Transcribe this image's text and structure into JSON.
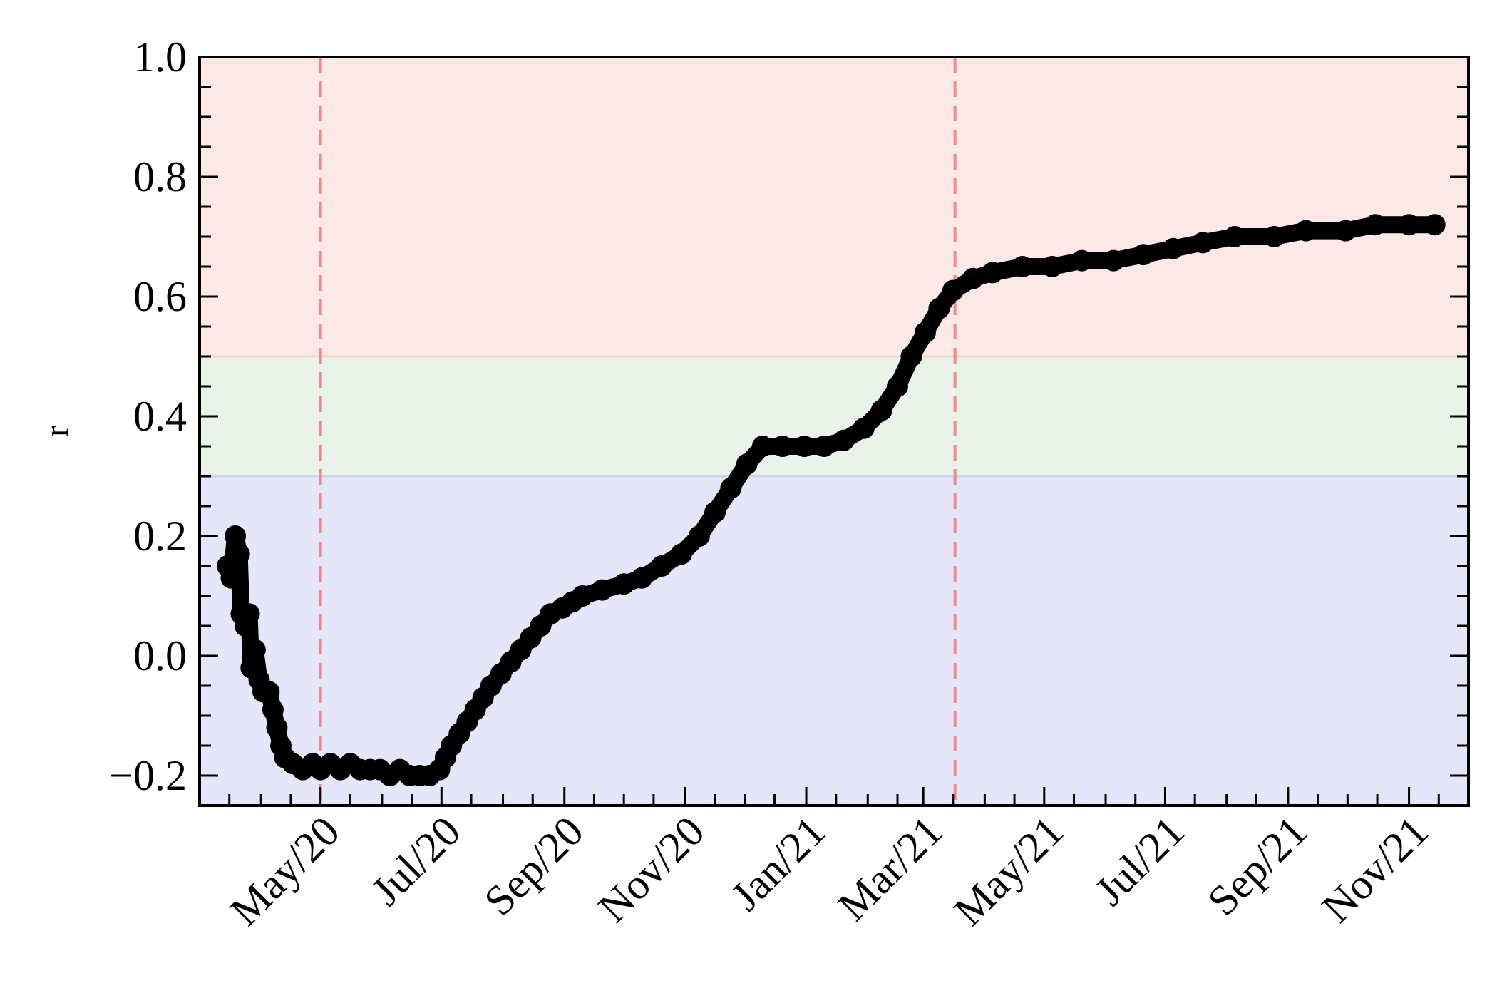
{
  "chart_data": {
    "type": "scatter",
    "title": "",
    "xlabel": "",
    "ylabel": "r",
    "x_type": "date",
    "xlim": [
      "2020-03-01",
      "2021-12-01"
    ],
    "ylim": [
      -0.25,
      1.0
    ],
    "y_ticks": [
      -0.2,
      0.0,
      0.2,
      0.4,
      0.6,
      0.8,
      1.0
    ],
    "y_tick_labels": [
      "−0.2",
      "0.0",
      "0.2",
      "0.4",
      "0.6",
      "0.8",
      "1.0"
    ],
    "x_ticks": [
      "2020-05-01",
      "2020-07-01",
      "2020-09-01",
      "2020-11-01",
      "2021-01-01",
      "2021-03-01",
      "2021-05-01",
      "2021-07-01",
      "2021-09-01",
      "2021-11-01"
    ],
    "x_tick_labels": [
      "May/20",
      "Jul/20",
      "Sep/20",
      "Nov/20",
      "Jan/21",
      "Mar/21",
      "May/21",
      "Jul/21",
      "Sep/21",
      "Nov/21"
    ],
    "grid": false,
    "bands": [
      {
        "y": [
          -0.25,
          0.3
        ],
        "color": "#e6e6fa"
      },
      {
        "y": [
          0.3,
          0.5
        ],
        "color": "#e9f3e9"
      },
      {
        "y": [
          0.5,
          1.0
        ],
        "color": "#fde8e8"
      }
    ],
    "vlines": [
      {
        "x": "2020-05-01",
        "color": "#f08080",
        "style": "dashed"
      },
      {
        "x": "2021-03-17",
        "color": "#f08080",
        "style": "dashed"
      }
    ],
    "series": [
      {
        "color": "#000000",
        "points": [
          [
            "2020-03-15",
            0.15
          ],
          [
            "2020-03-17",
            0.13
          ],
          [
            "2020-03-19",
            0.2
          ],
          [
            "2020-03-21",
            0.17
          ],
          [
            "2020-03-22",
            0.07
          ],
          [
            "2020-03-24",
            0.05
          ],
          [
            "2020-03-26",
            0.07
          ],
          [
            "2020-03-27",
            -0.02
          ],
          [
            "2020-03-29",
            0.01
          ],
          [
            "2020-03-31",
            -0.04
          ],
          [
            "2020-04-02",
            -0.06
          ],
          [
            "2020-04-05",
            -0.06
          ],
          [
            "2020-04-07",
            -0.09
          ],
          [
            "2020-04-09",
            -0.12
          ],
          [
            "2020-04-11",
            -0.15
          ],
          [
            "2020-04-13",
            -0.17
          ],
          [
            "2020-04-17",
            -0.18
          ],
          [
            "2020-04-22",
            -0.19
          ],
          [
            "2020-04-27",
            -0.18
          ],
          [
            "2020-05-01",
            -0.19
          ],
          [
            "2020-05-06",
            -0.18
          ],
          [
            "2020-05-11",
            -0.19
          ],
          [
            "2020-05-16",
            -0.18
          ],
          [
            "2020-05-21",
            -0.19
          ],
          [
            "2020-05-26",
            -0.19
          ],
          [
            "2020-05-31",
            -0.19
          ],
          [
            "2020-06-05",
            -0.2
          ],
          [
            "2020-06-10",
            -0.19
          ],
          [
            "2020-06-15",
            -0.2
          ],
          [
            "2020-06-20",
            -0.2
          ],
          [
            "2020-06-25",
            -0.2
          ],
          [
            "2020-06-30",
            -0.19
          ],
          [
            "2020-07-03",
            -0.17
          ],
          [
            "2020-07-06",
            -0.15
          ],
          [
            "2020-07-10",
            -0.13
          ],
          [
            "2020-07-14",
            -0.11
          ],
          [
            "2020-07-18",
            -0.09
          ],
          [
            "2020-07-22",
            -0.07
          ],
          [
            "2020-07-26",
            -0.05
          ],
          [
            "2020-07-31",
            -0.03
          ],
          [
            "2020-08-05",
            -0.01
          ],
          [
            "2020-08-10",
            0.01
          ],
          [
            "2020-08-15",
            0.03
          ],
          [
            "2020-08-20",
            0.05
          ],
          [
            "2020-08-25",
            0.07
          ],
          [
            "2020-08-31",
            0.08
          ],
          [
            "2020-09-05",
            0.09
          ],
          [
            "2020-09-10",
            0.1
          ],
          [
            "2020-09-20",
            0.11
          ],
          [
            "2020-10-01",
            0.12
          ],
          [
            "2020-10-10",
            0.13
          ],
          [
            "2020-10-20",
            0.15
          ],
          [
            "2020-10-30",
            0.17
          ],
          [
            "2020-11-08",
            0.2
          ],
          [
            "2020-11-16",
            0.24
          ],
          [
            "2020-11-24",
            0.28
          ],
          [
            "2020-12-02",
            0.32
          ],
          [
            "2020-12-10",
            0.35
          ],
          [
            "2020-12-20",
            0.35
          ],
          [
            "2020-12-31",
            0.35
          ],
          [
            "2021-01-10",
            0.35
          ],
          [
            "2021-01-20",
            0.36
          ],
          [
            "2021-01-30",
            0.38
          ],
          [
            "2021-02-08",
            0.41
          ],
          [
            "2021-02-16",
            0.45
          ],
          [
            "2021-02-23",
            0.5
          ],
          [
            "2021-03-02",
            0.54
          ],
          [
            "2021-03-09",
            0.58
          ],
          [
            "2021-03-16",
            0.61
          ],
          [
            "2021-03-26",
            0.63
          ],
          [
            "2021-04-05",
            0.64
          ],
          [
            "2021-04-20",
            0.65
          ],
          [
            "2021-05-05",
            0.65
          ],
          [
            "2021-05-20",
            0.66
          ],
          [
            "2021-06-05",
            0.66
          ],
          [
            "2021-06-20",
            0.67
          ],
          [
            "2021-07-05",
            0.68
          ],
          [
            "2021-07-20",
            0.69
          ],
          [
            "2021-08-05",
            0.7
          ],
          [
            "2021-08-25",
            0.7
          ],
          [
            "2021-09-10",
            0.71
          ],
          [
            "2021-09-30",
            0.71
          ],
          [
            "2021-10-15",
            0.72
          ],
          [
            "2021-11-01",
            0.72
          ],
          [
            "2021-11-14",
            0.72
          ]
        ]
      }
    ]
  }
}
